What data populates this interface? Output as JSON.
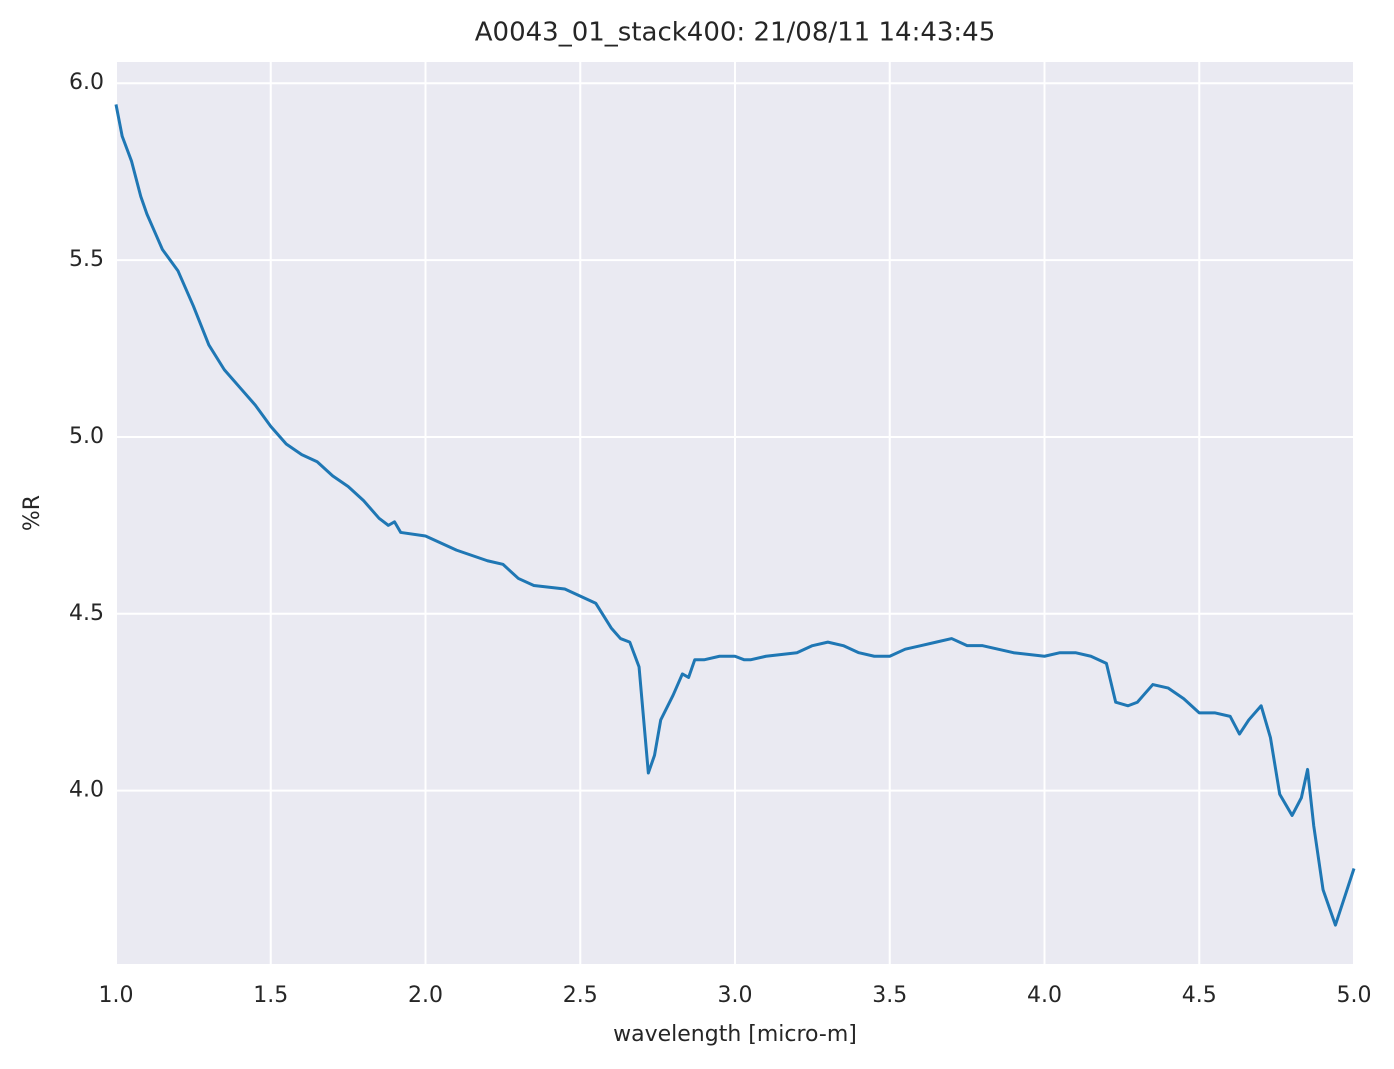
{
  "chart_data": {
    "type": "line",
    "title": "A0043_01_stack400:  21/08/11 14:43:45",
    "xlabel": "wavelength [micro-m]",
    "ylabel": "%R",
    "color": "#1f77b4",
    "grid": true,
    "xlim": [
      1.0,
      5.0
    ],
    "ylim": [
      3.51,
      6.06
    ],
    "xticks": [
      {
        "value": 1.0,
        "label": "1.0"
      },
      {
        "value": 1.5,
        "label": "1.5"
      },
      {
        "value": 2.0,
        "label": "2.0"
      },
      {
        "value": 2.5,
        "label": "2.5"
      },
      {
        "value": 3.0,
        "label": "3.0"
      },
      {
        "value": 3.5,
        "label": "3.5"
      },
      {
        "value": 4.0,
        "label": "4.0"
      },
      {
        "value": 4.5,
        "label": "4.5"
      },
      {
        "value": 5.0,
        "label": "5.0"
      }
    ],
    "yticks": [
      {
        "value": 4.0,
        "label": "4.0"
      },
      {
        "value": 4.5,
        "label": "4.5"
      },
      {
        "value": 5.0,
        "label": "5.0"
      },
      {
        "value": 5.5,
        "label": "5.5"
      },
      {
        "value": 6.0,
        "label": "6.0"
      }
    ],
    "x": [
      1.0,
      1.02,
      1.05,
      1.08,
      1.1,
      1.13,
      1.15,
      1.2,
      1.25,
      1.3,
      1.35,
      1.4,
      1.45,
      1.5,
      1.55,
      1.6,
      1.65,
      1.7,
      1.75,
      1.8,
      1.85,
      1.88,
      1.9,
      1.92,
      2.0,
      2.1,
      2.2,
      2.25,
      2.3,
      2.35,
      2.45,
      2.5,
      2.55,
      2.6,
      2.63,
      2.66,
      2.69,
      2.71,
      2.72,
      2.74,
      2.76,
      2.8,
      2.83,
      2.85,
      2.87,
      2.9,
      2.95,
      3.0,
      3.03,
      3.05,
      3.1,
      3.2,
      3.25,
      3.3,
      3.35,
      3.4,
      3.45,
      3.5,
      3.55,
      3.6,
      3.65,
      3.7,
      3.75,
      3.8,
      3.85,
      3.9,
      4.0,
      4.05,
      4.1,
      4.15,
      4.2,
      4.23,
      4.27,
      4.3,
      4.35,
      4.4,
      4.45,
      4.5,
      4.55,
      4.6,
      4.63,
      4.66,
      4.7,
      4.73,
      4.76,
      4.8,
      4.83,
      4.85,
      4.87,
      4.9,
      4.94,
      4.97,
      5.0
    ],
    "values": [
      5.94,
      5.85,
      5.78,
      5.68,
      5.63,
      5.57,
      5.53,
      5.47,
      5.37,
      5.26,
      5.19,
      5.14,
      5.09,
      5.03,
      4.98,
      4.95,
      4.93,
      4.89,
      4.86,
      4.82,
      4.77,
      4.75,
      4.76,
      4.73,
      4.72,
      4.68,
      4.65,
      4.64,
      4.6,
      4.58,
      4.57,
      4.55,
      4.53,
      4.46,
      4.43,
      4.42,
      4.35,
      4.15,
      4.05,
      4.1,
      4.2,
      4.27,
      4.33,
      4.32,
      4.37,
      4.37,
      4.38,
      4.38,
      4.37,
      4.37,
      4.38,
      4.39,
      4.41,
      4.42,
      4.41,
      4.39,
      4.38,
      4.38,
      4.4,
      4.41,
      4.42,
      4.43,
      4.41,
      4.41,
      4.4,
      4.39,
      4.38,
      4.39,
      4.39,
      4.38,
      4.36,
      4.25,
      4.24,
      4.25,
      4.3,
      4.29,
      4.26,
      4.22,
      4.22,
      4.21,
      4.16,
      4.2,
      4.24,
      4.15,
      3.99,
      3.93,
      3.98,
      4.06,
      3.9,
      3.72,
      3.62,
      3.7,
      3.78
    ]
  }
}
